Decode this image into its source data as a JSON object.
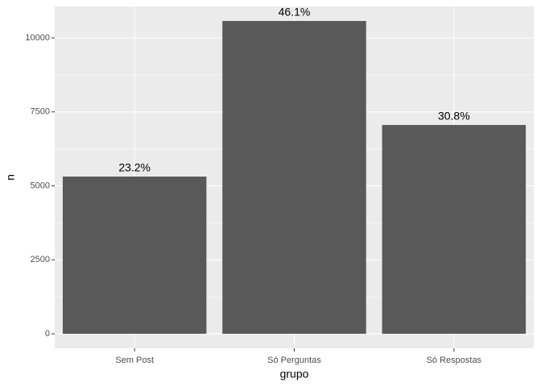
{
  "chart_data": {
    "type": "bar",
    "categories": [
      "Sem Post",
      "Só Perguntas",
      "Só Respostas"
    ],
    "values": [
      5313,
      10572,
      7057
    ],
    "bar_labels": [
      "23.2%",
      "46.1%",
      "30.8%"
    ],
    "color": "#595959",
    "x_label": "grupo",
    "y_label": "n",
    "ylim": [
      -490,
      11063
    ],
    "yticks": [
      0,
      2500,
      5000,
      7500,
      10000
    ],
    "grid": true
  }
}
